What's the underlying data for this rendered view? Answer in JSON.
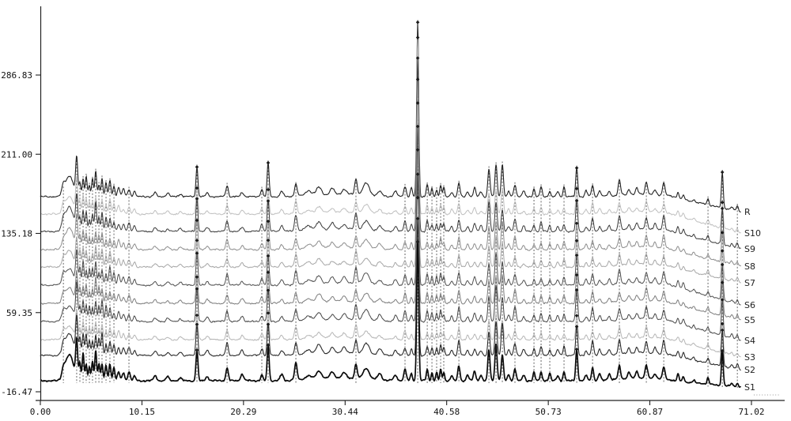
{
  "figure": {
    "background": "#ffffff",
    "description": "Overlaid HPLC fingerprint chromatograms of 10 samples (S1-S10) and reference (R)"
  },
  "axes": {
    "x_range": [
      0,
      71.02
    ],
    "y_range": [
      -16.47,
      286.83
    ],
    "x_ticks": [
      {
        "label": "0.00",
        "value": 0.0
      },
      {
        "label": "10.15",
        "value": 10.15
      },
      {
        "label": "20.29",
        "value": 20.29
      },
      {
        "label": "30.44",
        "value": 30.44
      },
      {
        "label": "40.58",
        "value": 40.58
      },
      {
        "label": "50.73",
        "value": 50.73
      },
      {
        "label": "60.87",
        "value": 60.87
      },
      {
        "label": "71.02",
        "value": 71.02
      }
    ],
    "y_ticks": [
      {
        "label": "286.83",
        "value": 286.83
      },
      {
        "label": "211.00",
        "value": 211.0
      },
      {
        "label": "135.18",
        "value": 135.18
      },
      {
        "label": "59.35",
        "value": 59.35
      },
      {
        "label": "-16.47",
        "value": -16.47
      }
    ]
  },
  "chart_data": {
    "type": "line",
    "title": "",
    "xlabel": "",
    "ylabel": "",
    "legend_position": "right-of-traces",
    "grid": false,
    "series": [
      {
        "label": "R",
        "color": "#222222",
        "baseline": 249,
        "end_drop": 19,
        "scale": 1.0,
        "width": 1.1,
        "big_peak_h": 167
      },
      {
        "label": "S10",
        "color": "#bfbfbf",
        "baseline": 271,
        "end_drop": 24,
        "scale": 0.8,
        "width": 1.0,
        "big_peak_h": 169
      },
      {
        "label": "S9",
        "color": "#383838",
        "baseline": 293,
        "end_drop": 22,
        "scale": 1.0,
        "width": 1.0,
        "big_peak_h": 166
      },
      {
        "label": "S8",
        "color": "#8c8c8c",
        "baseline": 316,
        "end_drop": 21,
        "scale": 0.88,
        "width": 1.0,
        "big_peak_h": 163
      },
      {
        "label": "S7",
        "color": "#a6a6a6",
        "baseline": 338,
        "end_drop": 20,
        "scale": 0.82,
        "width": 1.0,
        "big_peak_h": 157
      },
      {
        "label": "S6",
        "color": "#4f4f4f",
        "baseline": 361,
        "end_drop": 25,
        "scale": 0.95,
        "width": 1.0,
        "big_peak_h": 152
      },
      {
        "label": "S5",
        "color": "#7d7d7d",
        "baseline": 384,
        "end_drop": 21,
        "scale": 0.9,
        "width": 1.0,
        "big_peak_h": 147
      },
      {
        "label": "S4",
        "color": "#454545",
        "baseline": 407,
        "end_drop": 24,
        "scale": 0.97,
        "width": 1.0,
        "big_peak_h": 141
      },
      {
        "label": "S3",
        "color": "#b5b5b5",
        "baseline": 430,
        "end_drop": 22,
        "scale": 0.78,
        "width": 1.0,
        "big_peak_h": 136
      },
      {
        "label": "S2",
        "color": "#2b2b2b",
        "baseline": 450,
        "end_drop": 18,
        "scale": 1.02,
        "width": 1.1,
        "big_peak_h": 131
      },
      {
        "label": "S1",
        "color": "#0a0a0a",
        "baseline": 482,
        "end_drop": 8,
        "scale": 1.05,
        "width": 1.7,
        "big_peak_h": 133
      }
    ],
    "peaks": [
      {
        "t": 2.3,
        "h": 8,
        "w": 0.15,
        "dash": true
      },
      {
        "t": 2.9,
        "h": 20,
        "w": 0.4
      },
      {
        "t": 3.63,
        "h": 38,
        "w": 0.1,
        "dash": true
      },
      {
        "t": 3.95,
        "h": 16,
        "w": 0.09,
        "dash": true
      },
      {
        "t": 4.27,
        "h": 22,
        "w": 0.09,
        "dash": true
      },
      {
        "t": 4.58,
        "h": 17,
        "w": 0.09,
        "dash": true
      },
      {
        "t": 4.9,
        "h": 14,
        "w": 0.09,
        "dash": true
      },
      {
        "t": 5.21,
        "h": 16,
        "w": 0.09,
        "dash": true
      },
      {
        "t": 5.53,
        "h": 24,
        "w": 0.09,
        "dash": true
      },
      {
        "t": 5.85,
        "h": 15,
        "w": 0.09,
        "dash": true
      },
      {
        "t": 6.16,
        "h": 18,
        "w": 0.09,
        "dash": true
      },
      {
        "t": 6.56,
        "h": 13,
        "w": 0.1,
        "dash": true
      },
      {
        "t": 6.95,
        "h": 16,
        "w": 0.1,
        "dash": true
      },
      {
        "t": 7.35,
        "h": 11,
        "w": 0.1,
        "dash": true
      },
      {
        "t": 7.82,
        "h": 9,
        "w": 0.12
      },
      {
        "t": 8.3,
        "h": 7,
        "w": 0.12
      },
      {
        "t": 8.85,
        "h": 8,
        "w": 0.12,
        "dash": true
      },
      {
        "t": 9.4,
        "h": 5,
        "w": 0.12
      },
      {
        "t": 11.46,
        "h": 4,
        "w": 0.15
      },
      {
        "t": 12.72,
        "h": 3,
        "w": 0.15
      },
      {
        "t": 13.98,
        "h": 3,
        "w": 0.15
      },
      {
        "t": 15.64,
        "h": 30,
        "w": 0.1,
        "dash": true,
        "mark": true
      },
      {
        "t": 16.67,
        "h": 4,
        "w": 0.15
      },
      {
        "t": 18.65,
        "h": 11,
        "w": 0.12,
        "dash": true
      },
      {
        "t": 20.15,
        "h": 5,
        "w": 0.15
      },
      {
        "t": 22.12,
        "h": 6,
        "w": 0.12,
        "dash": true
      },
      {
        "t": 22.75,
        "h": 31,
        "w": 0.1,
        "dash": true,
        "mark": true
      },
      {
        "t": 24.1,
        "h": 5,
        "w": 0.15
      },
      {
        "t": 25.52,
        "h": 13,
        "w": 0.13,
        "dash": true
      },
      {
        "t": 26.78,
        "h": 4,
        "w": 0.3
      },
      {
        "t": 27.81,
        "h": 8,
        "w": 0.25
      },
      {
        "t": 29.15,
        "h": 5,
        "w": 0.2
      },
      {
        "t": 30.0,
        "h": 2.5,
        "w": 2.5
      },
      {
        "t": 30.34,
        "h": 5,
        "w": 0.2
      },
      {
        "t": 31.52,
        "h": 14,
        "w": 0.13,
        "dash": true
      },
      {
        "t": 32.55,
        "h": 10,
        "w": 0.3
      },
      {
        "t": 33.89,
        "h": 5,
        "w": 0.2
      },
      {
        "t": 35.47,
        "h": 5,
        "w": 0.15
      },
      {
        "t": 36.42,
        "h": 9,
        "w": 0.12,
        "dash": true
      },
      {
        "t": 37.06,
        "h": 7,
        "w": 0.1
      },
      {
        "t": 37.69,
        "h": 160,
        "w": 0.1,
        "dash": true,
        "mark": true,
        "big": true
      },
      {
        "t": 38.64,
        "h": 10,
        "w": 0.1,
        "dash": true
      },
      {
        "t": 39.11,
        "h": 8,
        "w": 0.09,
        "dash": true
      },
      {
        "t": 39.58,
        "h": 8,
        "w": 0.09,
        "dash": true
      },
      {
        "t": 39.98,
        "h": 11,
        "w": 0.09,
        "dash": true
      },
      {
        "t": 40.29,
        "h": 8,
        "w": 0.09,
        "dash": true
      },
      {
        "t": 41.08,
        "h": 5,
        "w": 0.12
      },
      {
        "t": 41.8,
        "h": 12,
        "w": 0.11,
        "dash": true
      },
      {
        "t": 42.67,
        "h": 5,
        "w": 0.12
      },
      {
        "t": 43.37,
        "h": 7,
        "w": 0.12
      },
      {
        "t": 44.01,
        "h": 5,
        "w": 0.12
      },
      {
        "t": 44.8,
        "h": 27,
        "w": 0.11,
        "dash": true
      },
      {
        "t": 45.51,
        "h": 31,
        "w": 0.11,
        "dash": true
      },
      {
        "t": 46.14,
        "h": 26,
        "w": 0.11,
        "dash": true
      },
      {
        "t": 46.77,
        "h": 6,
        "w": 0.12
      },
      {
        "t": 47.4,
        "h": 13,
        "w": 0.12,
        "dash": true
      },
      {
        "t": 48.27,
        "h": 5,
        "w": 0.12
      },
      {
        "t": 49.3,
        "h": 7,
        "w": 0.1,
        "dash": true
      },
      {
        "t": 50.01,
        "h": 8,
        "w": 0.1,
        "dash": true
      },
      {
        "t": 50.88,
        "h": 6,
        "w": 0.1,
        "dash": true
      },
      {
        "t": 51.67,
        "h": 5,
        "w": 0.12
      },
      {
        "t": 52.3,
        "h": 8,
        "w": 0.1,
        "dash": true
      },
      {
        "t": 53.57,
        "h": 29,
        "w": 0.1,
        "dash": true,
        "mark": true
      },
      {
        "t": 54.51,
        "h": 5,
        "w": 0.12
      },
      {
        "t": 55.15,
        "h": 11,
        "w": 0.11,
        "dash": true
      },
      {
        "t": 55.86,
        "h": 5,
        "w": 0.12
      },
      {
        "t": 56.81,
        "h": 5,
        "w": 0.12
      },
      {
        "t": 57.83,
        "h": 12,
        "w": 0.12,
        "dash": true
      },
      {
        "t": 58.78,
        "h": 5,
        "w": 0.12
      },
      {
        "t": 59.57,
        "h": 5,
        "w": 0.12
      },
      {
        "t": 60.0,
        "h": 3,
        "w": 2.0
      },
      {
        "t": 60.52,
        "h": 11,
        "w": 0.12,
        "dash": true
      },
      {
        "t": 61.39,
        "h": 5,
        "w": 0.12
      },
      {
        "t": 62.26,
        "h": 12,
        "w": 0.12,
        "dash": true
      },
      {
        "t": 63.68,
        "h": 6,
        "w": 0.1
      },
      {
        "t": 64.23,
        "h": 5,
        "w": 0.1
      },
      {
        "t": 65.26,
        "h": 3,
        "w": 0.1
      },
      {
        "t": 66.68,
        "h": 5,
        "w": 0.1,
        "dash": true
      },
      {
        "t": 68.11,
        "h": 33,
        "w": 0.09,
        "dash": true,
        "mark": true
      },
      {
        "t": 69.06,
        "h": 3,
        "w": 0.1
      },
      {
        "t": 69.61,
        "h": 4,
        "w": 0.09,
        "dash": true
      }
    ]
  },
  "colors": {
    "axis": "#222222",
    "dashed_guides": "#555555",
    "markers": "#1a1a1a",
    "tail_dots": "#9a9a9a"
  }
}
